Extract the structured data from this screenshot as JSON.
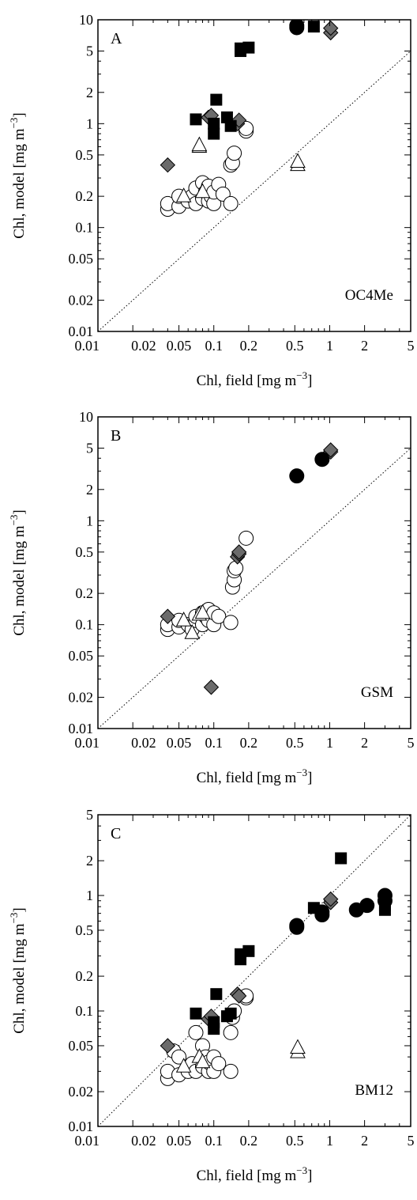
{
  "axes": {
    "x_title_main": "Chl, field [mg m",
    "y_title_main": "Chl, model [mg m",
    "unit_exponent": "−3",
    "unit_close": "]",
    "x_ticks": [
      "0.01",
      "0.02",
      "0.05",
      "0.1",
      "0.2",
      "0.5",
      "1",
      "2",
      "5"
    ],
    "y_ticks_ab": [
      "0.01",
      "0.02",
      "0.05",
      "0.1",
      "0.2",
      "0.5",
      "1",
      "2",
      "5",
      "10"
    ],
    "y_ticks_c": [
      "0.01",
      "0.02",
      "0.05",
      "0.1",
      "0.2",
      "0.5",
      "1",
      "2",
      "5"
    ]
  },
  "colors": {
    "square": "#000000",
    "circle_filled": "#000000",
    "circle_open": "#ffffff",
    "diamond": "#6b6b6b",
    "triangle": "#ffffff",
    "one_to_one_line": "#000000"
  },
  "chart_data": [
    {
      "type": "scatter",
      "panel_letter": "A",
      "panel_name": "OC4Me",
      "xlabel": "Chl, field [mg m−3]",
      "ylabel": "Chl, model [mg m−3]",
      "x_scale": "log",
      "y_scale": "log",
      "xlim": [
        0.01,
        5
      ],
      "ylim": [
        0.01,
        10
      ],
      "reference_line": "1:1 dotted",
      "series": [
        {
          "marker": "square",
          "points": [
            [
              0.07,
              1.1
            ],
            [
              0.1,
              0.8
            ],
            [
              0.1,
              1.0
            ],
            [
              0.105,
              1.7
            ],
            [
              0.13,
              1.15
            ],
            [
              0.14,
              0.95
            ],
            [
              0.17,
              5.0
            ],
            [
              0.17,
              5.3
            ],
            [
              0.2,
              5.4
            ],
            [
              0.73,
              8.6
            ]
          ]
        },
        {
          "marker": "circle_filled",
          "points": [
            [
              0.52,
              8.4
            ],
            [
              0.52,
              8.8
            ]
          ]
        },
        {
          "marker": "diamond",
          "points": [
            [
              0.04,
              0.4
            ],
            [
              0.09,
              1.15
            ],
            [
              0.095,
              1.2
            ],
            [
              0.16,
              1.0
            ],
            [
              0.165,
              1.08
            ],
            [
              1.02,
              7.5
            ],
            [
              1.02,
              8.3
            ]
          ]
        },
        {
          "marker": "triangle",
          "points": [
            [
              0.055,
              0.2
            ],
            [
              0.075,
              0.6
            ],
            [
              0.075,
              0.62
            ],
            [
              0.08,
              0.22
            ],
            [
              0.53,
              0.4
            ],
            [
              0.53,
              0.43
            ]
          ]
        },
        {
          "marker": "circle_open",
          "points": [
            [
              0.04,
              0.15
            ],
            [
              0.04,
              0.17
            ],
            [
              0.05,
              0.16
            ],
            [
              0.05,
              0.2
            ],
            [
              0.06,
              0.18
            ],
            [
              0.065,
              0.2
            ],
            [
              0.07,
              0.17
            ],
            [
              0.07,
              0.24
            ],
            [
              0.08,
              0.19
            ],
            [
              0.08,
              0.27
            ],
            [
              0.085,
              0.22
            ],
            [
              0.09,
              0.18
            ],
            [
              0.09,
              0.25
            ],
            [
              0.095,
              0.2
            ],
            [
              0.1,
              0.17
            ],
            [
              0.1,
              0.22
            ],
            [
              0.11,
              0.26
            ],
            [
              0.12,
              0.21
            ],
            [
              0.14,
              0.17
            ],
            [
              0.14,
              0.4
            ],
            [
              0.145,
              0.42
            ],
            [
              0.15,
              0.52
            ],
            [
              0.19,
              0.85
            ],
            [
              0.19,
              0.9
            ]
          ]
        }
      ]
    },
    {
      "type": "scatter",
      "panel_letter": "B",
      "panel_name": "GSM",
      "xlabel": "Chl, field [mg m−3]",
      "ylabel": "Chl, model [mg m−3]",
      "x_scale": "log",
      "y_scale": "log",
      "xlim": [
        0.01,
        5
      ],
      "ylim": [
        0.01,
        10
      ],
      "reference_line": "1:1 dotted",
      "series": [
        {
          "marker": "circle_filled",
          "points": [
            [
              0.52,
              2.7
            ],
            [
              0.86,
              3.9
            ]
          ]
        },
        {
          "marker": "diamond",
          "points": [
            [
              0.04,
              0.12
            ],
            [
              0.095,
              0.025
            ],
            [
              0.16,
              0.45
            ],
            [
              0.165,
              0.48
            ],
            [
              0.165,
              0.5
            ],
            [
              1.02,
              4.6
            ],
            [
              1.02,
              4.8
            ]
          ]
        },
        {
          "marker": "triangle",
          "points": [
            [
              0.055,
              0.11
            ],
            [
              0.065,
              0.083
            ],
            [
              0.075,
              0.125
            ],
            [
              0.08,
              0.13
            ]
          ]
        },
        {
          "marker": "circle_open",
          "points": [
            [
              0.04,
              0.09
            ],
            [
              0.04,
              0.1
            ],
            [
              0.05,
              0.095
            ],
            [
              0.05,
              0.11
            ],
            [
              0.06,
              0.1
            ],
            [
              0.065,
              0.09
            ],
            [
              0.07,
              0.11
            ],
            [
              0.07,
              0.12
            ],
            [
              0.08,
              0.1
            ],
            [
              0.08,
              0.13
            ],
            [
              0.085,
              0.12
            ],
            [
              0.09,
              0.11
            ],
            [
              0.09,
              0.14
            ],
            [
              0.1,
              0.1
            ],
            [
              0.1,
              0.13
            ],
            [
              0.11,
              0.12
            ],
            [
              0.14,
              0.105
            ],
            [
              0.145,
              0.23
            ],
            [
              0.15,
              0.27
            ],
            [
              0.15,
              0.33
            ],
            [
              0.155,
              0.35
            ],
            [
              0.19,
              0.68
            ]
          ]
        }
      ]
    },
    {
      "type": "scatter",
      "panel_letter": "C",
      "panel_name": "BM12",
      "xlabel": "Chl, field [mg m−3]",
      "ylabel": "Chl, model [mg m−3]",
      "x_scale": "log",
      "y_scale": "log",
      "xlim": [
        0.01,
        5
      ],
      "ylim": [
        0.01,
        5
      ],
      "reference_line": "1:1 dotted",
      "series": [
        {
          "marker": "square",
          "points": [
            [
              0.07,
              0.095
            ],
            [
              0.1,
              0.07
            ],
            [
              0.1,
              0.08
            ],
            [
              0.105,
              0.14
            ],
            [
              0.13,
              0.09
            ],
            [
              0.14,
              0.095
            ],
            [
              0.17,
              0.28
            ],
            [
              0.17,
              0.31
            ],
            [
              0.2,
              0.33
            ],
            [
              0.73,
              0.78
            ],
            [
              1.25,
              2.1
            ],
            [
              3.0,
              0.75
            ],
            [
              3.0,
              0.82
            ]
          ]
        },
        {
          "marker": "circle_filled",
          "points": [
            [
              0.52,
              0.53
            ],
            [
              0.52,
              0.55
            ],
            [
              0.86,
              0.68
            ],
            [
              0.86,
              0.72
            ],
            [
              1.7,
              0.75
            ],
            [
              2.1,
              0.82
            ],
            [
              3.0,
              0.9
            ],
            [
              3.0,
              1.0
            ]
          ]
        },
        {
          "marker": "diamond",
          "points": [
            [
              0.04,
              0.05
            ],
            [
              0.09,
              0.085
            ],
            [
              0.095,
              0.09
            ],
            [
              0.16,
              0.14
            ],
            [
              0.165,
              0.135
            ],
            [
              1.02,
              0.87
            ],
            [
              1.02,
              0.93
            ]
          ]
        },
        {
          "marker": "triangle",
          "points": [
            [
              0.055,
              0.033
            ],
            [
              0.075,
              0.04
            ],
            [
              0.08,
              0.036
            ],
            [
              0.53,
              0.044
            ],
            [
              0.53,
              0.048
            ]
          ]
        },
        {
          "marker": "circle_open",
          "points": [
            [
              0.04,
              0.026
            ],
            [
              0.04,
              0.03
            ],
            [
              0.045,
              0.045
            ],
            [
              0.05,
              0.028
            ],
            [
              0.05,
              0.04
            ],
            [
              0.06,
              0.03
            ],
            [
              0.065,
              0.035
            ],
            [
              0.07,
              0.03
            ],
            [
              0.07,
              0.065
            ],
            [
              0.08,
              0.033
            ],
            [
              0.08,
              0.05
            ],
            [
              0.085,
              0.04
            ],
            [
              0.09,
              0.03
            ],
            [
              0.09,
              0.036
            ],
            [
              0.1,
              0.03
            ],
            [
              0.1,
              0.04
            ],
            [
              0.11,
              0.035
            ],
            [
              0.14,
              0.03
            ],
            [
              0.14,
              0.065
            ],
            [
              0.145,
              0.088
            ],
            [
              0.15,
              0.1
            ],
            [
              0.19,
              0.13
            ],
            [
              0.19,
              0.135
            ]
          ]
        }
      ]
    }
  ]
}
